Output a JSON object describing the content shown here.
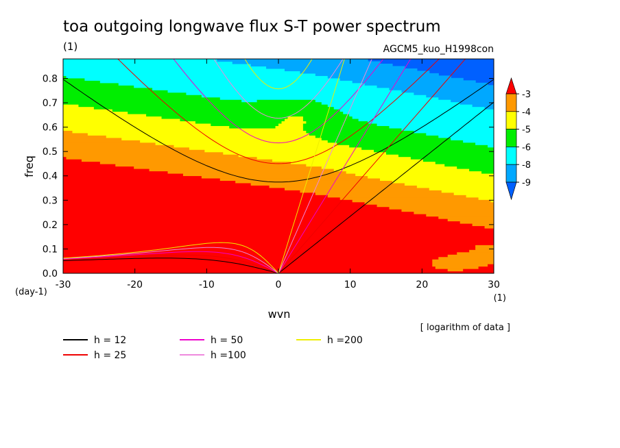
{
  "chart_data": {
    "type": "heatmap",
    "title": "toa outgoing longwave flux S-T power spectrum",
    "subtitle": "AGCM5_kuo_H1998con",
    "y_units_label": "(1)",
    "xlabel": "wvn",
    "x_units_label": "(1)",
    "ylabel": "freq",
    "y_tick_units": "(day-1)",
    "note": "[ logarithm of data ]",
    "xlim": [
      -30,
      30
    ],
    "ylim": [
      0,
      0.88
    ],
    "x_ticks": [
      -30,
      -20,
      -10,
      0,
      10,
      20,
      30
    ],
    "y_ticks": [
      0.0,
      0.1,
      0.2,
      0.3,
      0.4,
      0.5,
      0.6,
      0.7,
      0.8
    ],
    "x_tick_labels": [
      "-30",
      "-20",
      "-10",
      "0",
      "10",
      "20",
      "30"
    ],
    "y_tick_labels": [
      "0.0",
      "0.1",
      "0.2",
      "0.3",
      "0.4",
      "0.5",
      "0.6",
      "0.7",
      "0.8"
    ],
    "colorbar": {
      "levels": [
        -3,
        -4,
        -5,
        -6,
        -8,
        -9
      ],
      "labels": [
        "-3",
        "-4",
        "-5",
        "-6",
        "-8",
        "-9"
      ],
      "colors": [
        "#ff0000",
        "#ff9900",
        "#ffff00",
        "#00ee00",
        "#00ffff",
        "#00a8ff",
        "#0060ff"
      ]
    },
    "dispersion_curves": [
      {
        "label": "h = 12",
        "h": 12,
        "color": "#000000"
      },
      {
        "label": "h = 25",
        "h": 25,
        "color": "#ee0000"
      },
      {
        "label": "h = 50",
        "h": 50,
        "color": "#ee00cc"
      },
      {
        "label": "h =100",
        "h": 100,
        "color": "#ee88dd"
      },
      {
        "label": "h =200",
        "h": 200,
        "color": "#eeee00"
      }
    ],
    "grid": false
  }
}
